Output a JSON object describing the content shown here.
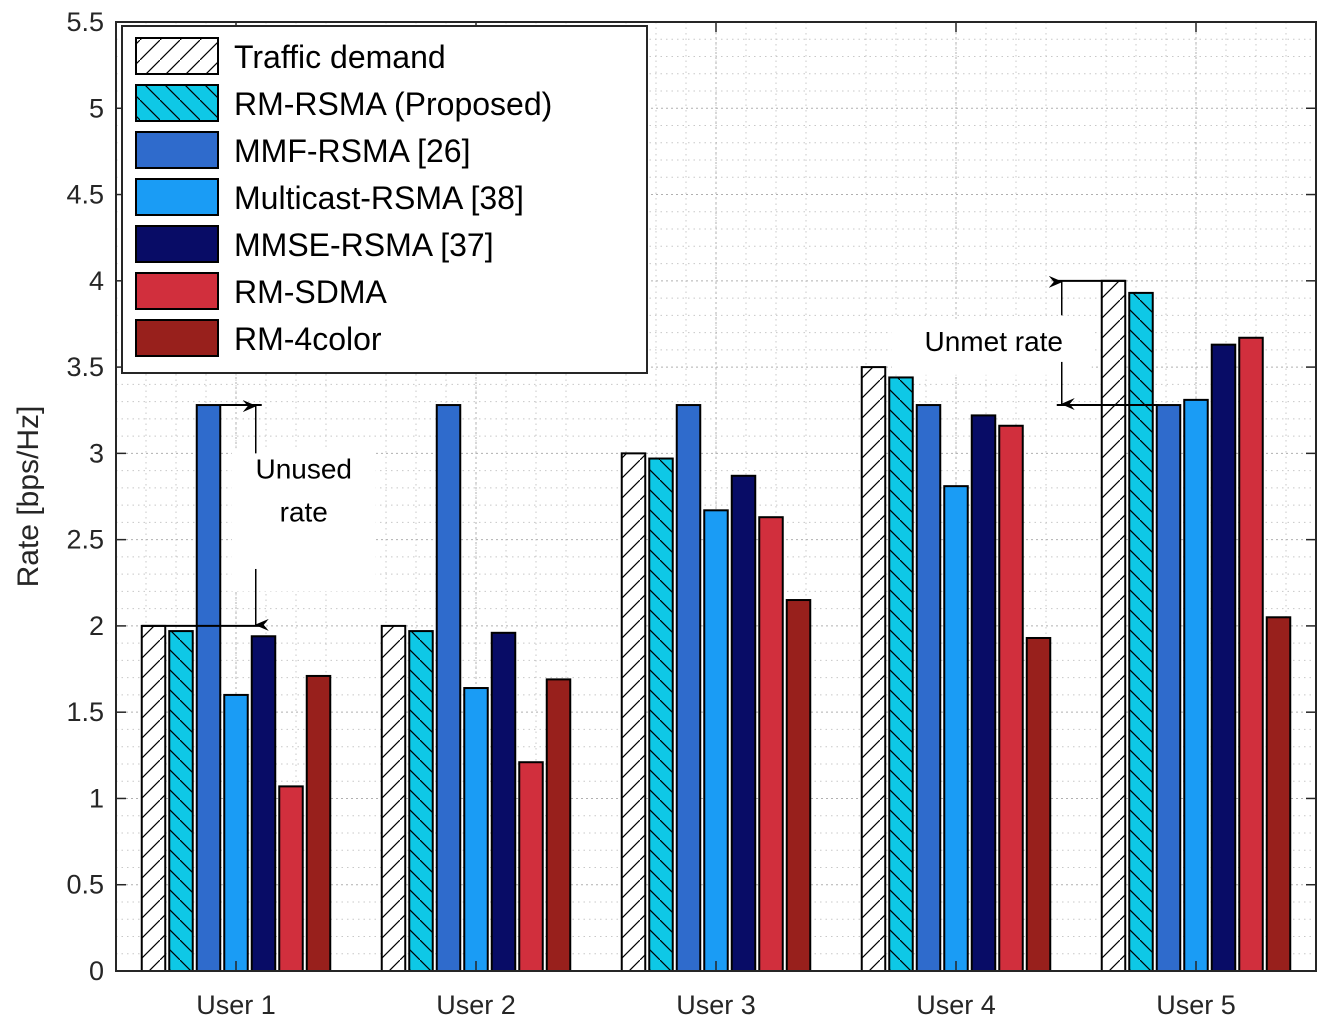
{
  "chart_data": {
    "type": "bar",
    "categories": [
      "User 1",
      "User 2",
      "User 3",
      "User 4",
      "User 5"
    ],
    "series": [
      {
        "name": "Traffic demand",
        "values": [
          2.0,
          2.0,
          3.0,
          3.5,
          4.0
        ],
        "color": "#ffffff",
        "hatch": "diag-forward"
      },
      {
        "name": "RM-RSMA (Proposed)",
        "values": [
          1.97,
          1.97,
          2.97,
          3.44,
          3.93
        ],
        "color": "#0ec8e6",
        "hatch": "diag-back"
      },
      {
        "name": "MMF-RSMA [26]",
        "values": [
          3.28,
          3.28,
          3.28,
          3.28,
          3.28
        ],
        "color": "#2f6bcc",
        "hatch": "none"
      },
      {
        "name": "Multicast-RSMA [38]",
        "values": [
          1.6,
          1.64,
          2.67,
          2.81,
          3.31
        ],
        "color": "#1a9cf5",
        "hatch": "none"
      },
      {
        "name": "MMSE-RSMA [37]",
        "values": [
          1.94,
          1.96,
          2.87,
          3.22,
          3.63
        ],
        "color": "#080c66",
        "hatch": "none"
      },
      {
        "name": "RM-SDMA",
        "values": [
          1.07,
          1.21,
          2.63,
          3.16,
          3.67
        ],
        "color": "#d12f3d",
        "hatch": "none"
      },
      {
        "name": "RM-4color",
        "values": [
          1.71,
          1.69,
          2.15,
          1.93,
          2.05
        ],
        "color": "#98201c",
        "hatch": "none"
      }
    ],
    "ylabel": "Rate [bps/Hz]",
    "xlabel": "",
    "title": "",
    "ylim": [
      0,
      5.5
    ],
    "yticks": [
      "0",
      "0.5",
      "1",
      "1.5",
      "2",
      "2.5",
      "3",
      "3.5",
      "4",
      "4.5",
      "5",
      "5.5"
    ],
    "grid": true,
    "legend_position": "top-left",
    "annotations": [
      {
        "text_lines": [
          "Unused",
          "rate"
        ],
        "category": "User 1",
        "from": 2.0,
        "to": 3.28
      },
      {
        "text_lines": [
          "Unmet rate"
        ],
        "category": "User 5",
        "from": 3.28,
        "to": 4.0
      }
    ]
  }
}
